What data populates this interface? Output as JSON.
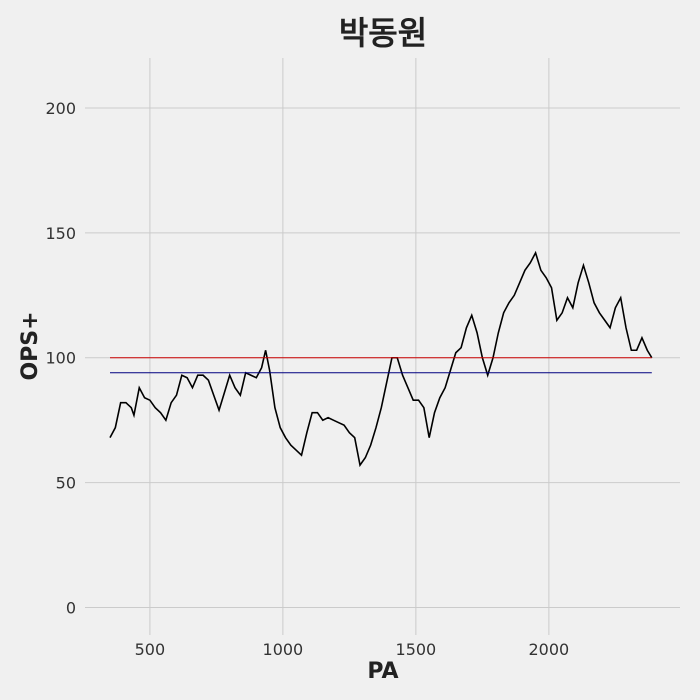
{
  "chart_data": {
    "type": "line",
    "title": "박동원",
    "x_label": "PA",
    "y_label": "OPS+",
    "x": [
      350,
      370,
      390,
      410,
      430,
      440,
      460,
      480,
      500,
      520,
      540,
      560,
      580,
      600,
      620,
      640,
      660,
      680,
      700,
      720,
      740,
      760,
      780,
      800,
      820,
      840,
      860,
      880,
      900,
      920,
      935,
      950,
      970,
      990,
      1010,
      1030,
      1050,
      1070,
      1090,
      1110,
      1130,
      1150,
      1170,
      1190,
      1210,
      1230,
      1250,
      1270,
      1290,
      1310,
      1330,
      1350,
      1370,
      1390,
      1410,
      1430,
      1450,
      1470,
      1490,
      1510,
      1530,
      1550,
      1570,
      1590,
      1610,
      1630,
      1650,
      1670,
      1690,
      1710,
      1730,
      1750,
      1770,
      1790,
      1810,
      1830,
      1850,
      1870,
      1890,
      1910,
      1930,
      1950,
      1970,
      1990,
      2010,
      2030,
      2050,
      2070,
      2090,
      2110,
      2130,
      2150,
      2170,
      2190,
      2210,
      2230,
      2250,
      2270,
      2290,
      2310,
      2330,
      2350,
      2370,
      2387
    ],
    "series": [
      {
        "name": "OPS+",
        "color": "#000000",
        "values": [
          68,
          72,
          82,
          82,
          80,
          77,
          88,
          84,
          83,
          80,
          78,
          75,
          82,
          85,
          93,
          92,
          88,
          93,
          93,
          91,
          85,
          79,
          86,
          93,
          88,
          85,
          94,
          93,
          92,
          96,
          103,
          95,
          80,
          72,
          68,
          65,
          63,
          61,
          70,
          78,
          78,
          75,
          76,
          75,
          74,
          73,
          70,
          68,
          57,
          60,
          65,
          72,
          80,
          90,
          100,
          100,
          93,
          88,
          83,
          83,
          80,
          68,
          78,
          84,
          88,
          95,
          102,
          104,
          112,
          117,
          110,
          100,
          93,
          100,
          110,
          118,
          122,
          125,
          130,
          135,
          138,
          142,
          135,
          132,
          128,
          115,
          118,
          124,
          120,
          130,
          137,
          130,
          122,
          118,
          115,
          112,
          120,
          124,
          112,
          103,
          103,
          108,
          103,
          100
        ]
      }
    ],
    "reference_lines": [
      {
        "value": 100,
        "color": "#cc0000"
      },
      {
        "value": 94,
        "color": "#000080"
      }
    ],
    "xlim": [
      256,
      2493
    ],
    "ylim": [
      -11,
      220
    ],
    "xticks": [
      500,
      1000,
      1500,
      2000
    ],
    "yticks": [
      0,
      50,
      100,
      150,
      200
    ],
    "grid": true
  }
}
